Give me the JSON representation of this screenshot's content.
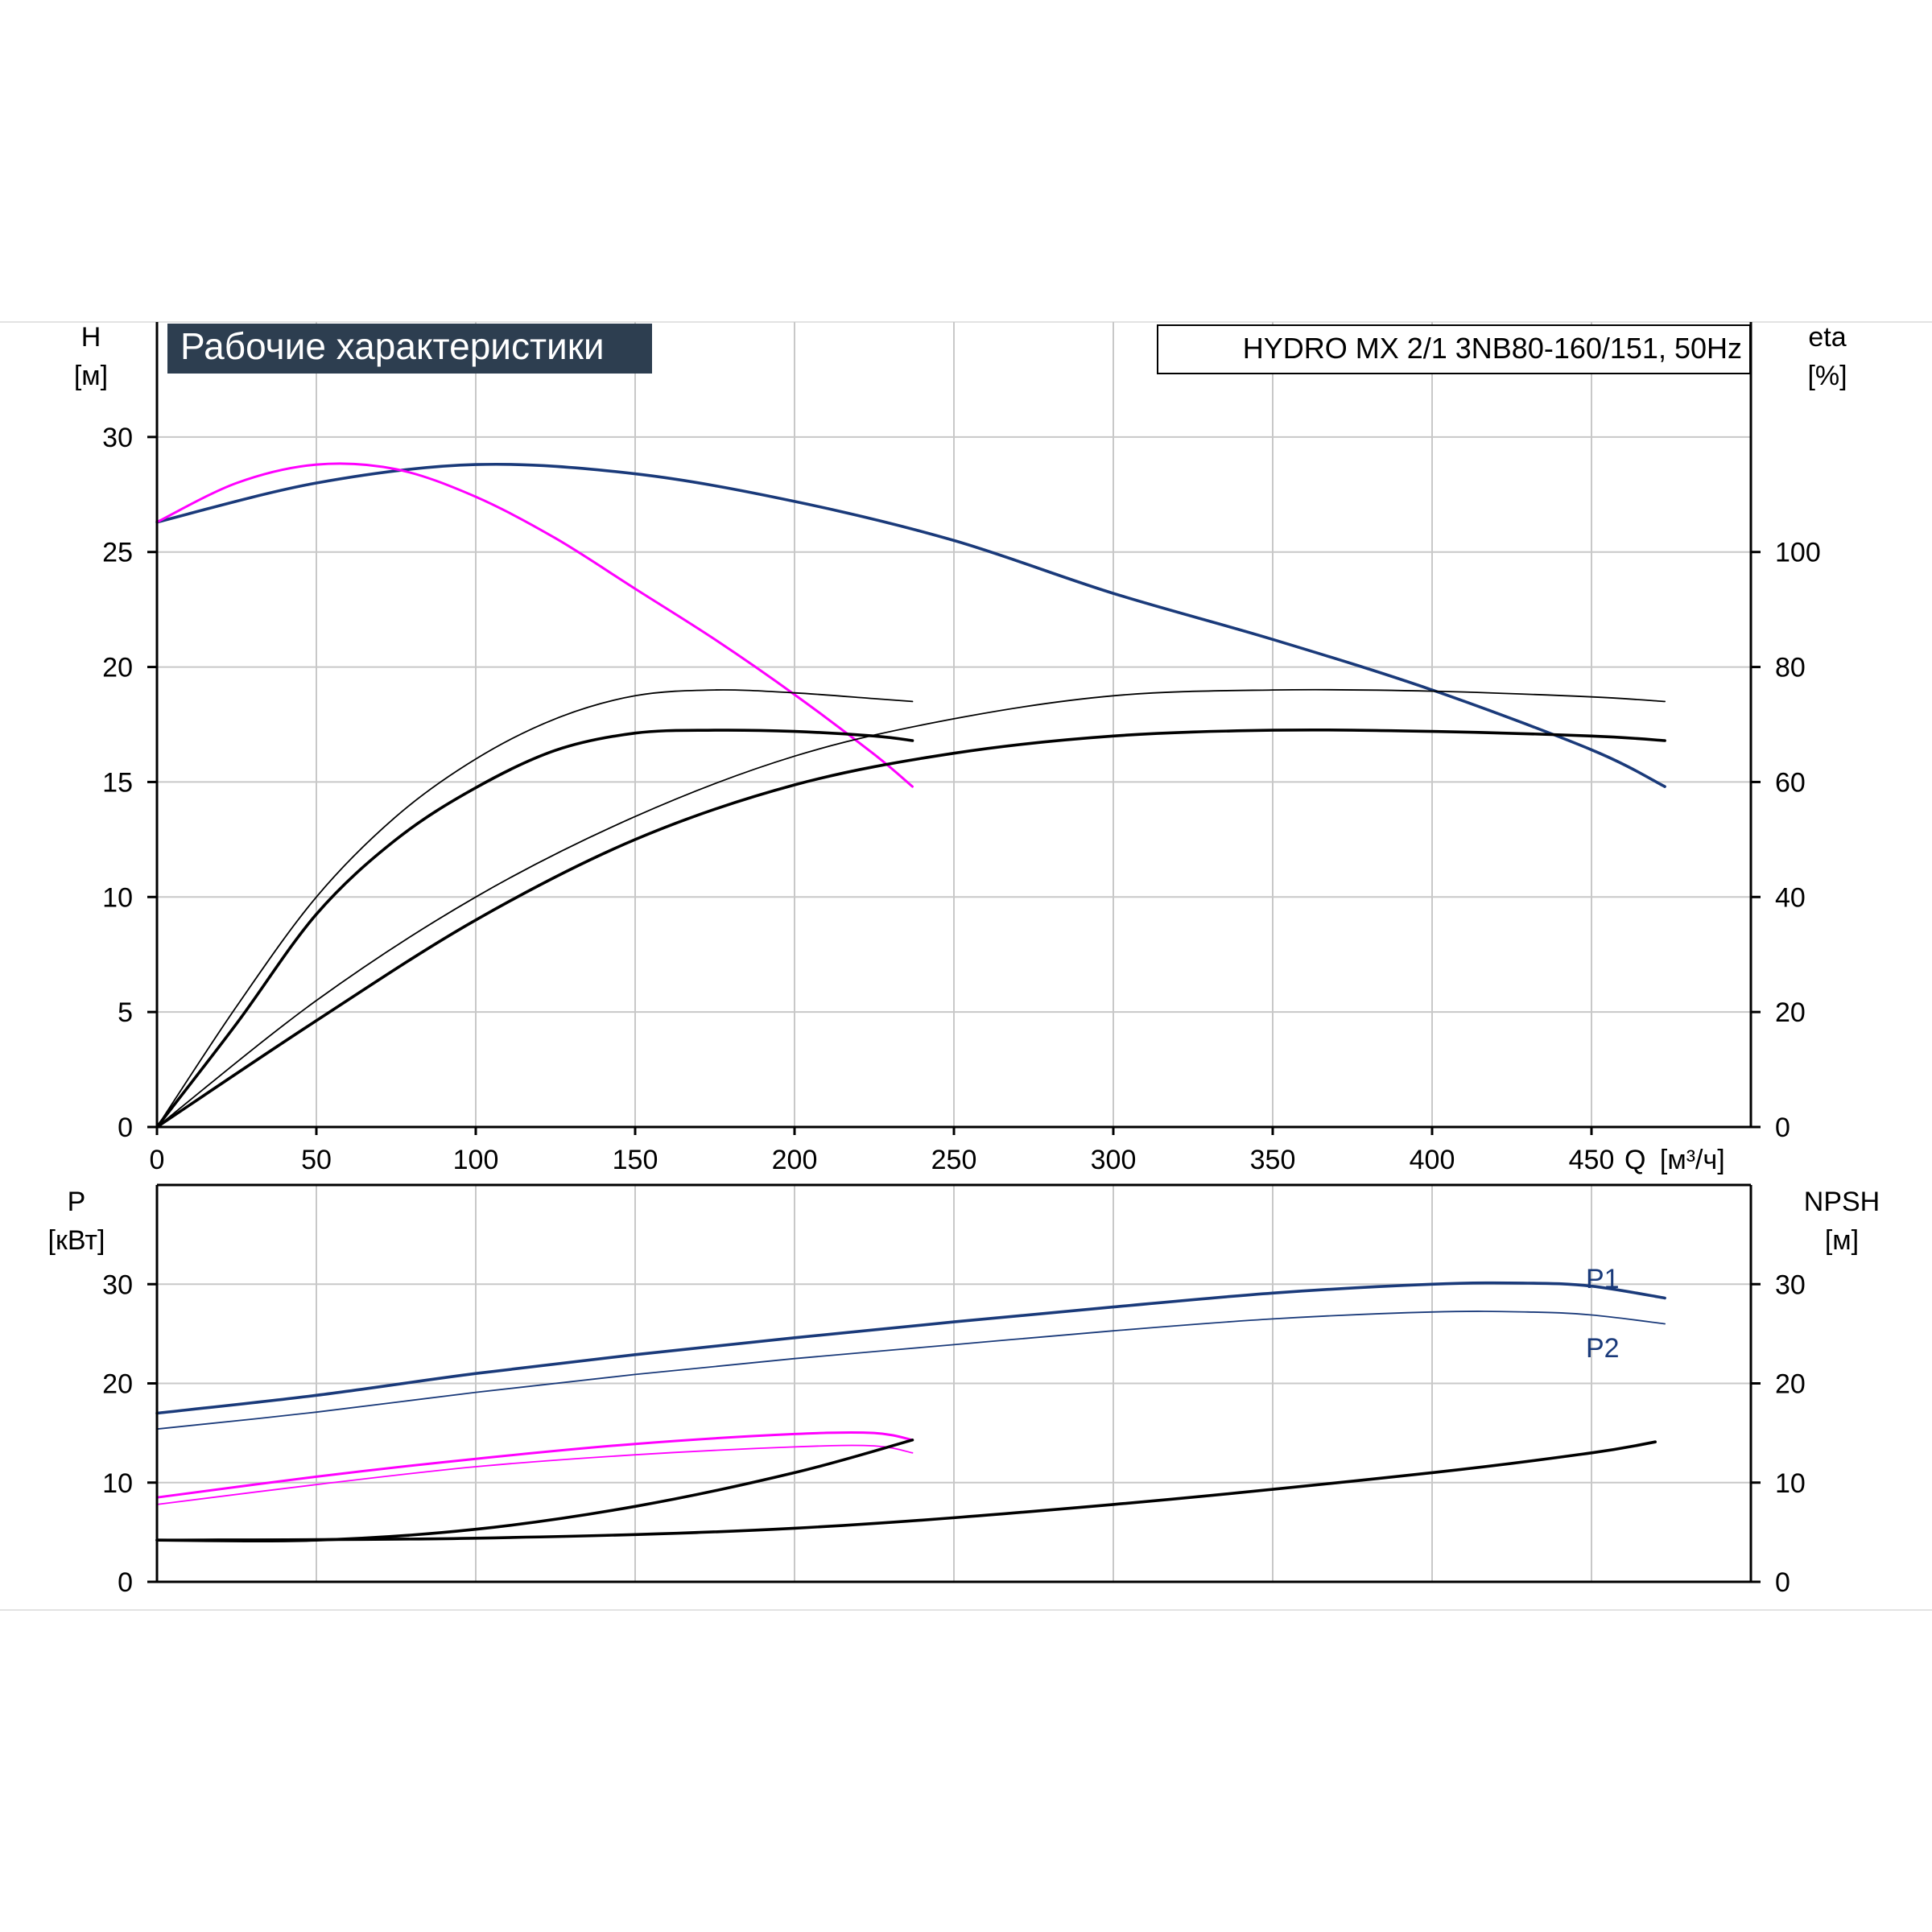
{
  "chart_data": [
    {
      "type": "line",
      "title": "Рабочие характеристики",
      "model_label": "HYDRO MX 2/1 3NB80-160/151, 50Hz",
      "ylabel": "H",
      "yunit": "[м]",
      "y2label": "eta",
      "y2unit": "[%]",
      "xlabel": "Q",
      "xunit": "[м³/ч]",
      "xlim": [
        0,
        500
      ],
      "ylim": [
        0,
        35
      ],
      "y2lim": [
        0,
        140
      ],
      "x_ticks": [
        "0",
        "50",
        "100",
        "150",
        "200",
        "250",
        "300",
        "350",
        "400",
        "450"
      ],
      "y_ticks": [
        "0",
        "5",
        "10",
        "15",
        "20",
        "25",
        "30"
      ],
      "y2_ticks": [
        "0",
        "20",
        "40",
        "60",
        "80",
        "100"
      ],
      "series": [
        {
          "axis": "left",
          "color": "#1a3a7a",
          "width": 3.6,
          "x": [
            0,
            50,
            100,
            150,
            200,
            250,
            300,
            350,
            400,
            450,
            473
          ],
          "y": [
            26.3,
            28.0,
            28.8,
            28.4,
            27.2,
            25.5,
            23.2,
            21.2,
            19.0,
            16.4,
            14.8
          ]
        },
        {
          "axis": "left",
          "color": "#ff00ff",
          "width": 3.0,
          "x": [
            0,
            25,
            50,
            75,
            100,
            125,
            150,
            175,
            200,
            225,
            237
          ],
          "y": [
            26.3,
            28.0,
            28.8,
            28.6,
            27.4,
            25.6,
            23.4,
            21.2,
            18.8,
            16.2,
            14.8
          ]
        },
        {
          "axis": "right",
          "color": "#000000",
          "width": 1.8,
          "x": [
            0,
            25,
            50,
            75,
            100,
            125,
            150,
            175,
            200,
            225,
            237
          ],
          "y": [
            0,
            21,
            40,
            54,
            64,
            71,
            75,
            76,
            75.5,
            74.5,
            74
          ]
        },
        {
          "axis": "right",
          "color": "#000000",
          "width": 3.6,
          "x": [
            0,
            25,
            50,
            75,
            100,
            125,
            150,
            175,
            200,
            225,
            237
          ],
          "y": [
            0,
            18,
            37,
            50,
            59,
            65.5,
            68.5,
            69,
            68.8,
            68,
            67.2
          ]
        },
        {
          "axis": "right",
          "color": "#000000",
          "width": 1.8,
          "x": [
            0,
            50,
            100,
            150,
            200,
            250,
            300,
            350,
            400,
            450,
            473
          ],
          "y": [
            0,
            22,
            40,
            54,
            64.5,
            71,
            75,
            76,
            75.8,
            74.8,
            74
          ]
        },
        {
          "axis": "right",
          "color": "#000000",
          "width": 3.6,
          "x": [
            0,
            50,
            100,
            150,
            200,
            250,
            300,
            350,
            400,
            450,
            473
          ],
          "y": [
            0,
            18.5,
            36,
            50,
            59.5,
            65,
            68,
            69,
            68.8,
            68,
            67.2
          ]
        }
      ]
    },
    {
      "type": "line",
      "ylabel": "P",
      "yunit": "[кВт]",
      "y2label": "NPSH",
      "y2unit": "[м]",
      "xlim": [
        0,
        500
      ],
      "ylim": [
        0,
        40
      ],
      "y2lim": [
        0,
        40
      ],
      "y_ticks": [
        "0",
        "10",
        "20",
        "30"
      ],
      "y2_ticks": [
        "0",
        "10",
        "20",
        "30"
      ],
      "series": [
        {
          "name": "P1",
          "axis": "left",
          "color": "#1a3a7a",
          "width": 3.6,
          "x": [
            0,
            50,
            100,
            150,
            200,
            250,
            300,
            350,
            400,
            430,
            450,
            473
          ],
          "y": [
            17.0,
            18.8,
            21.0,
            22.9,
            24.6,
            26.2,
            27.7,
            29.1,
            30.0,
            30.1,
            29.8,
            28.6
          ]
        },
        {
          "name": "P2",
          "axis": "left",
          "color": "#1a3a7a",
          "width": 1.8,
          "x": [
            0,
            50,
            100,
            150,
            200,
            250,
            300,
            350,
            400,
            430,
            450,
            473
          ],
          "y": [
            15.4,
            17.1,
            19.1,
            20.9,
            22.5,
            23.9,
            25.3,
            26.5,
            27.2,
            27.2,
            26.9,
            26.0
          ]
        },
        {
          "axis": "left",
          "color": "#ff00ff",
          "width": 3.0,
          "x": [
            0,
            50,
            100,
            150,
            200,
            225,
            237
          ],
          "y": [
            8.5,
            10.6,
            12.4,
            13.9,
            14.9,
            15.0,
            14.3
          ]
        },
        {
          "axis": "left",
          "color": "#ff00ff",
          "width": 1.8,
          "x": [
            0,
            50,
            100,
            150,
            200,
            225,
            237
          ],
          "y": [
            7.8,
            9.8,
            11.6,
            12.8,
            13.6,
            13.7,
            13.0
          ]
        },
        {
          "axis": "right",
          "color": "#000000",
          "width": 3.6,
          "x": [
            0,
            50,
            100,
            150,
            200,
            237
          ],
          "y": [
            4.2,
            4.2,
            5.3,
            7.6,
            11.0,
            14.3
          ]
        },
        {
          "axis": "right",
          "color": "#000000",
          "width": 3.6,
          "x": [
            0,
            100,
            200,
            300,
            400,
            450,
            470
          ],
          "y": [
            4.2,
            4.4,
            5.4,
            7.8,
            11.0,
            13.0,
            14.1
          ]
        }
      ]
    }
  ]
}
